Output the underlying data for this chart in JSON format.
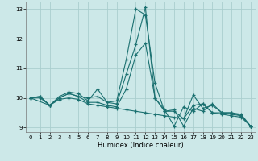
{
  "xlabel": "Humidex (Indice chaleur)",
  "bg_color": "#cce8e8",
  "grid_color": "#aacece",
  "line_color": "#1a7070",
  "xlim": [
    -0.5,
    23.5
  ],
  "ylim": [
    8.85,
    13.25
  ],
  "yticks": [
    9,
    10,
    11,
    12,
    13
  ],
  "xticks": [
    0,
    1,
    2,
    3,
    4,
    5,
    6,
    7,
    8,
    9,
    10,
    11,
    12,
    13,
    14,
    15,
    16,
    17,
    18,
    19,
    20,
    21,
    22,
    23
  ],
  "lines": [
    [
      0,
      1,
      2,
      3,
      4,
      5,
      6,
      7,
      8,
      9,
      10,
      11,
      12,
      13,
      14,
      15,
      16,
      17,
      18,
      19,
      20,
      21,
      22,
      23
    ],
    [
      10.0,
      10.05,
      9.75,
      10.05,
      10.2,
      10.15,
      9.9,
      10.3,
      9.85,
      9.9,
      11.3,
      13.0,
      12.8,
      10.5,
      9.55,
      9.6,
      9.05,
      9.65,
      9.55,
      9.8,
      9.5,
      9.5,
      9.45,
      9.05
    ],
    [
      0,
      1,
      2,
      3,
      4,
      5,
      6,
      7,
      8,
      9,
      10,
      11,
      12,
      13,
      14,
      15,
      16,
      17,
      18,
      19,
      20,
      21,
      22,
      23
    ],
    [
      10.0,
      10.05,
      9.75,
      10.0,
      10.15,
      10.05,
      10.0,
      10.05,
      9.85,
      9.8,
      10.8,
      11.8,
      13.05,
      10.0,
      9.6,
      9.05,
      9.7,
      9.55,
      9.8,
      9.5,
      9.5,
      9.45,
      9.4,
      9.05
    ],
    [
      0,
      2,
      3,
      4,
      5,
      6,
      7,
      8,
      9,
      10,
      11,
      12,
      13,
      14,
      15,
      16,
      17,
      18,
      19,
      20,
      21,
      22,
      23
    ],
    [
      10.0,
      9.75,
      10.0,
      10.15,
      10.05,
      9.85,
      9.85,
      9.75,
      9.7,
      10.3,
      11.45,
      11.85,
      10.0,
      9.55,
      9.55,
      9.3,
      10.1,
      9.65,
      9.75,
      9.5,
      9.5,
      9.4,
      9.05
    ],
    [
      0,
      1,
      2,
      3,
      4,
      5,
      6,
      7,
      8,
      9,
      10,
      11,
      12,
      13,
      14,
      15,
      16,
      17,
      18,
      19,
      20,
      21,
      22,
      23
    ],
    [
      10.0,
      10.0,
      9.75,
      9.95,
      10.0,
      9.95,
      9.8,
      9.75,
      9.7,
      9.65,
      9.6,
      9.55,
      9.5,
      9.45,
      9.4,
      9.35,
      9.3,
      9.75,
      9.8,
      9.5,
      9.45,
      9.4,
      9.35,
      9.05
    ]
  ]
}
